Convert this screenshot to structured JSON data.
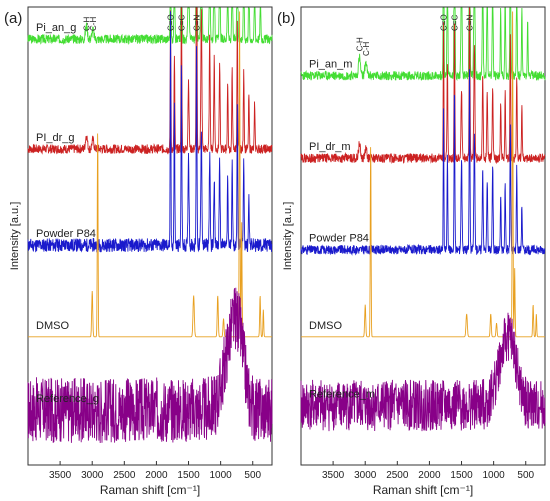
{
  "chart_data": [
    {
      "panel_label": "(a)",
      "type": "line",
      "xlabel": "Raman shift [cm⁻¹]",
      "ylabel": "Intensity [a.u.]",
      "xlim": [
        4000,
        200
      ],
      "x_ticks": [
        3500,
        3000,
        2500,
        2000,
        1500,
        1000,
        500
      ],
      "annotations": [
        {
          "text": "C=O",
          "x": 1780
        },
        {
          "text": "C=C",
          "x": 1610
        },
        {
          "text": "C=N",
          "x": 1375
        },
        {
          "text": "C-H",
          "x": 3090
        },
        {
          "text": "C-H",
          "x": 2990
        }
      ],
      "series": [
        {
          "name": "Pi_an_g",
          "color": "#44dd33",
          "baseline": 0.93,
          "noise": 0.02,
          "seed": 3,
          "peaks": [
            [
              3090,
              0.03,
              15
            ],
            [
              2990,
              0.02,
              15
            ],
            [
              1780,
              0.55,
              5
            ],
            [
              1720,
              0.3,
              6
            ],
            [
              1610,
              0.6,
              6
            ],
            [
              1500,
              0.25,
              8
            ],
            [
              1375,
              1.0,
              6
            ],
            [
              1300,
              0.45,
              8
            ],
            [
              1170,
              0.3,
              7
            ],
            [
              1100,
              0.25,
              7
            ],
            [
              1015,
              0.22,
              7
            ],
            [
              890,
              0.18,
              6
            ],
            [
              820,
              0.22,
              6
            ],
            [
              740,
              0.42,
              6
            ],
            [
              640,
              0.25,
              6
            ],
            [
              560,
              0.18,
              6
            ],
            [
              470,
              0.15,
              6
            ],
            [
              380,
              0.1,
              6
            ]
          ]
        },
        {
          "name": "PI_dr_g",
          "color": "#cc2222",
          "baseline": 0.69,
          "noise": 0.02,
          "seed": 7,
          "peaks": [
            [
              3090,
              0.03,
              15
            ],
            [
              2990,
              0.02,
              15
            ],
            [
              1780,
              0.3,
              5
            ],
            [
              1720,
              0.2,
              6
            ],
            [
              1610,
              0.35,
              6
            ],
            [
              1500,
              0.15,
              8
            ],
            [
              1375,
              0.6,
              6
            ],
            [
              1300,
              0.3,
              8
            ],
            [
              1170,
              0.25,
              7
            ],
            [
              1100,
              0.2,
              7
            ],
            [
              1015,
              0.18,
              7
            ],
            [
              890,
              0.15,
              6
            ],
            [
              820,
              0.18,
              6
            ],
            [
              740,
              0.28,
              6
            ],
            [
              640,
              0.18,
              6
            ],
            [
              560,
              0.12,
              6
            ],
            [
              470,
              0.1,
              6
            ]
          ]
        },
        {
          "name": "Powder P84",
          "color": "#1a1acc",
          "baseline": 0.48,
          "noise": 0.03,
          "seed": 11,
          "peaks": [
            [
              1780,
              0.5,
              5
            ],
            [
              1720,
              0.3,
              6
            ],
            [
              1610,
              0.4,
              6
            ],
            [
              1500,
              0.2,
              8
            ],
            [
              1375,
              0.45,
              6
            ],
            [
              1300,
              0.25,
              8
            ],
            [
              1170,
              0.2,
              7
            ],
            [
              1100,
              0.15,
              7
            ],
            [
              1015,
              0.18,
              7
            ],
            [
              890,
              0.15,
              6
            ],
            [
              820,
              0.2,
              6
            ],
            [
              740,
              0.3,
              6
            ],
            [
              640,
              0.2,
              6
            ],
            [
              560,
              0.12,
              6
            ]
          ]
        },
        {
          "name": "DMSO",
          "color": "#e8a020",
          "baseline": 0.28,
          "noise": 0.0,
          "seed": 13,
          "peaks": [
            [
              3000,
              0.1,
              8
            ],
            [
              2915,
              0.45,
              6
            ],
            [
              1420,
              0.09,
              10
            ],
            [
              1045,
              0.09,
              8
            ],
            [
              955,
              0.04,
              8
            ],
            [
              705,
              0.72,
              6
            ],
            [
              672,
              0.25,
              6
            ],
            [
              385,
              0.09,
              7
            ],
            [
              335,
              0.06,
              6
            ]
          ]
        },
        {
          "name": "Reference_g",
          "color": "#880088",
          "baseline": 0.12,
          "noise": 0.09,
          "seed": 17,
          "peaks": [
            [
              820,
              0.16,
              120
            ],
            [
              700,
              0.08,
              80
            ]
          ]
        }
      ]
    },
    {
      "panel_label": "(b)",
      "type": "line",
      "xlabel": "Raman shift [cm⁻¹]",
      "ylabel": "Intensity [a.u.]",
      "xlim": [
        4000,
        200
      ],
      "x_ticks": [
        3500,
        3000,
        2500,
        2000,
        1500,
        1000,
        500
      ],
      "annotations": [
        {
          "text": "C=O",
          "x": 1780
        },
        {
          "text": "C=C",
          "x": 1610
        },
        {
          "text": "C=N",
          "x": 1375
        },
        {
          "text": "C-H",
          "x": 3090
        },
        {
          "text": "C-H",
          "x": 2990
        }
      ],
      "series": [
        {
          "name": "Pi_an_m",
          "color": "#44dd33",
          "baseline": 0.85,
          "noise": 0.02,
          "seed": 23,
          "peaks": [
            [
              3090,
              0.04,
              15
            ],
            [
              2990,
              0.03,
              15
            ],
            [
              1780,
              0.6,
              5
            ],
            [
              1720,
              0.3,
              6
            ],
            [
              1610,
              0.6,
              6
            ],
            [
              1500,
              0.25,
              8
            ],
            [
              1375,
              0.78,
              6
            ],
            [
              1300,
              0.35,
              8
            ],
            [
              1170,
              0.25,
              7
            ],
            [
              1100,
              0.2,
              7
            ],
            [
              1015,
              0.2,
              7
            ],
            [
              890,
              0.15,
              6
            ],
            [
              820,
              0.2,
              6
            ],
            [
              740,
              0.45,
              6
            ],
            [
              640,
              0.25,
              6
            ],
            [
              560,
              0.15,
              6
            ],
            [
              470,
              0.12,
              6
            ]
          ]
        },
        {
          "name": "PI_dr_m",
          "color": "#cc2222",
          "baseline": 0.67,
          "noise": 0.02,
          "seed": 29,
          "peaks": [
            [
              3090,
              0.03,
              15
            ],
            [
              2990,
              0.02,
              15
            ],
            [
              1780,
              0.3,
              5
            ],
            [
              1720,
              0.2,
              6
            ],
            [
              1610,
              0.3,
              6
            ],
            [
              1500,
              0.15,
              8
            ],
            [
              1375,
              0.4,
              6
            ],
            [
              1300,
              0.25,
              8
            ],
            [
              1170,
              0.18,
              7
            ],
            [
              1100,
              0.15,
              7
            ],
            [
              1015,
              0.15,
              7
            ],
            [
              890,
              0.12,
              6
            ],
            [
              820,
              0.15,
              6
            ],
            [
              740,
              0.28,
              6
            ],
            [
              640,
              0.18,
              6
            ],
            [
              560,
              0.12,
              6
            ]
          ]
        },
        {
          "name": "Powder P84",
          "color": "#1a1acc",
          "baseline": 0.47,
          "noise": 0.02,
          "seed": 31,
          "peaks": [
            [
              1780,
              0.3,
              5
            ],
            [
              1720,
              0.2,
              6
            ],
            [
              1610,
              0.35,
              6
            ],
            [
              1500,
              0.2,
              8
            ],
            [
              1375,
              0.4,
              6
            ],
            [
              1300,
              0.25,
              8
            ],
            [
              1170,
              0.18,
              7
            ],
            [
              1100,
              0.15,
              7
            ],
            [
              1015,
              0.18,
              7
            ],
            [
              890,
              0.12,
              6
            ],
            [
              820,
              0.15,
              6
            ],
            [
              740,
              0.28,
              6
            ],
            [
              640,
              0.18,
              6
            ],
            [
              560,
              0.1,
              6
            ]
          ]
        },
        {
          "name": "DMSO",
          "color": "#e8a020",
          "baseline": 0.28,
          "noise": 0.0,
          "seed": 37,
          "peaks": [
            [
              3000,
              0.07,
              8
            ],
            [
              2915,
              0.42,
              6
            ],
            [
              1420,
              0.05,
              10
            ],
            [
              1045,
              0.05,
              8
            ],
            [
              955,
              0.03,
              8
            ],
            [
              705,
              0.72,
              6
            ],
            [
              672,
              0.15,
              6
            ],
            [
              385,
              0.07,
              7
            ],
            [
              335,
              0.05,
              6
            ]
          ]
        },
        {
          "name": "Reference_m",
          "color": "#880088",
          "baseline": 0.13,
          "noise": 0.07,
          "seed": 41,
          "peaks": [
            [
              820,
              0.12,
              120
            ],
            [
              700,
              0.06,
              80
            ]
          ]
        }
      ]
    }
  ]
}
